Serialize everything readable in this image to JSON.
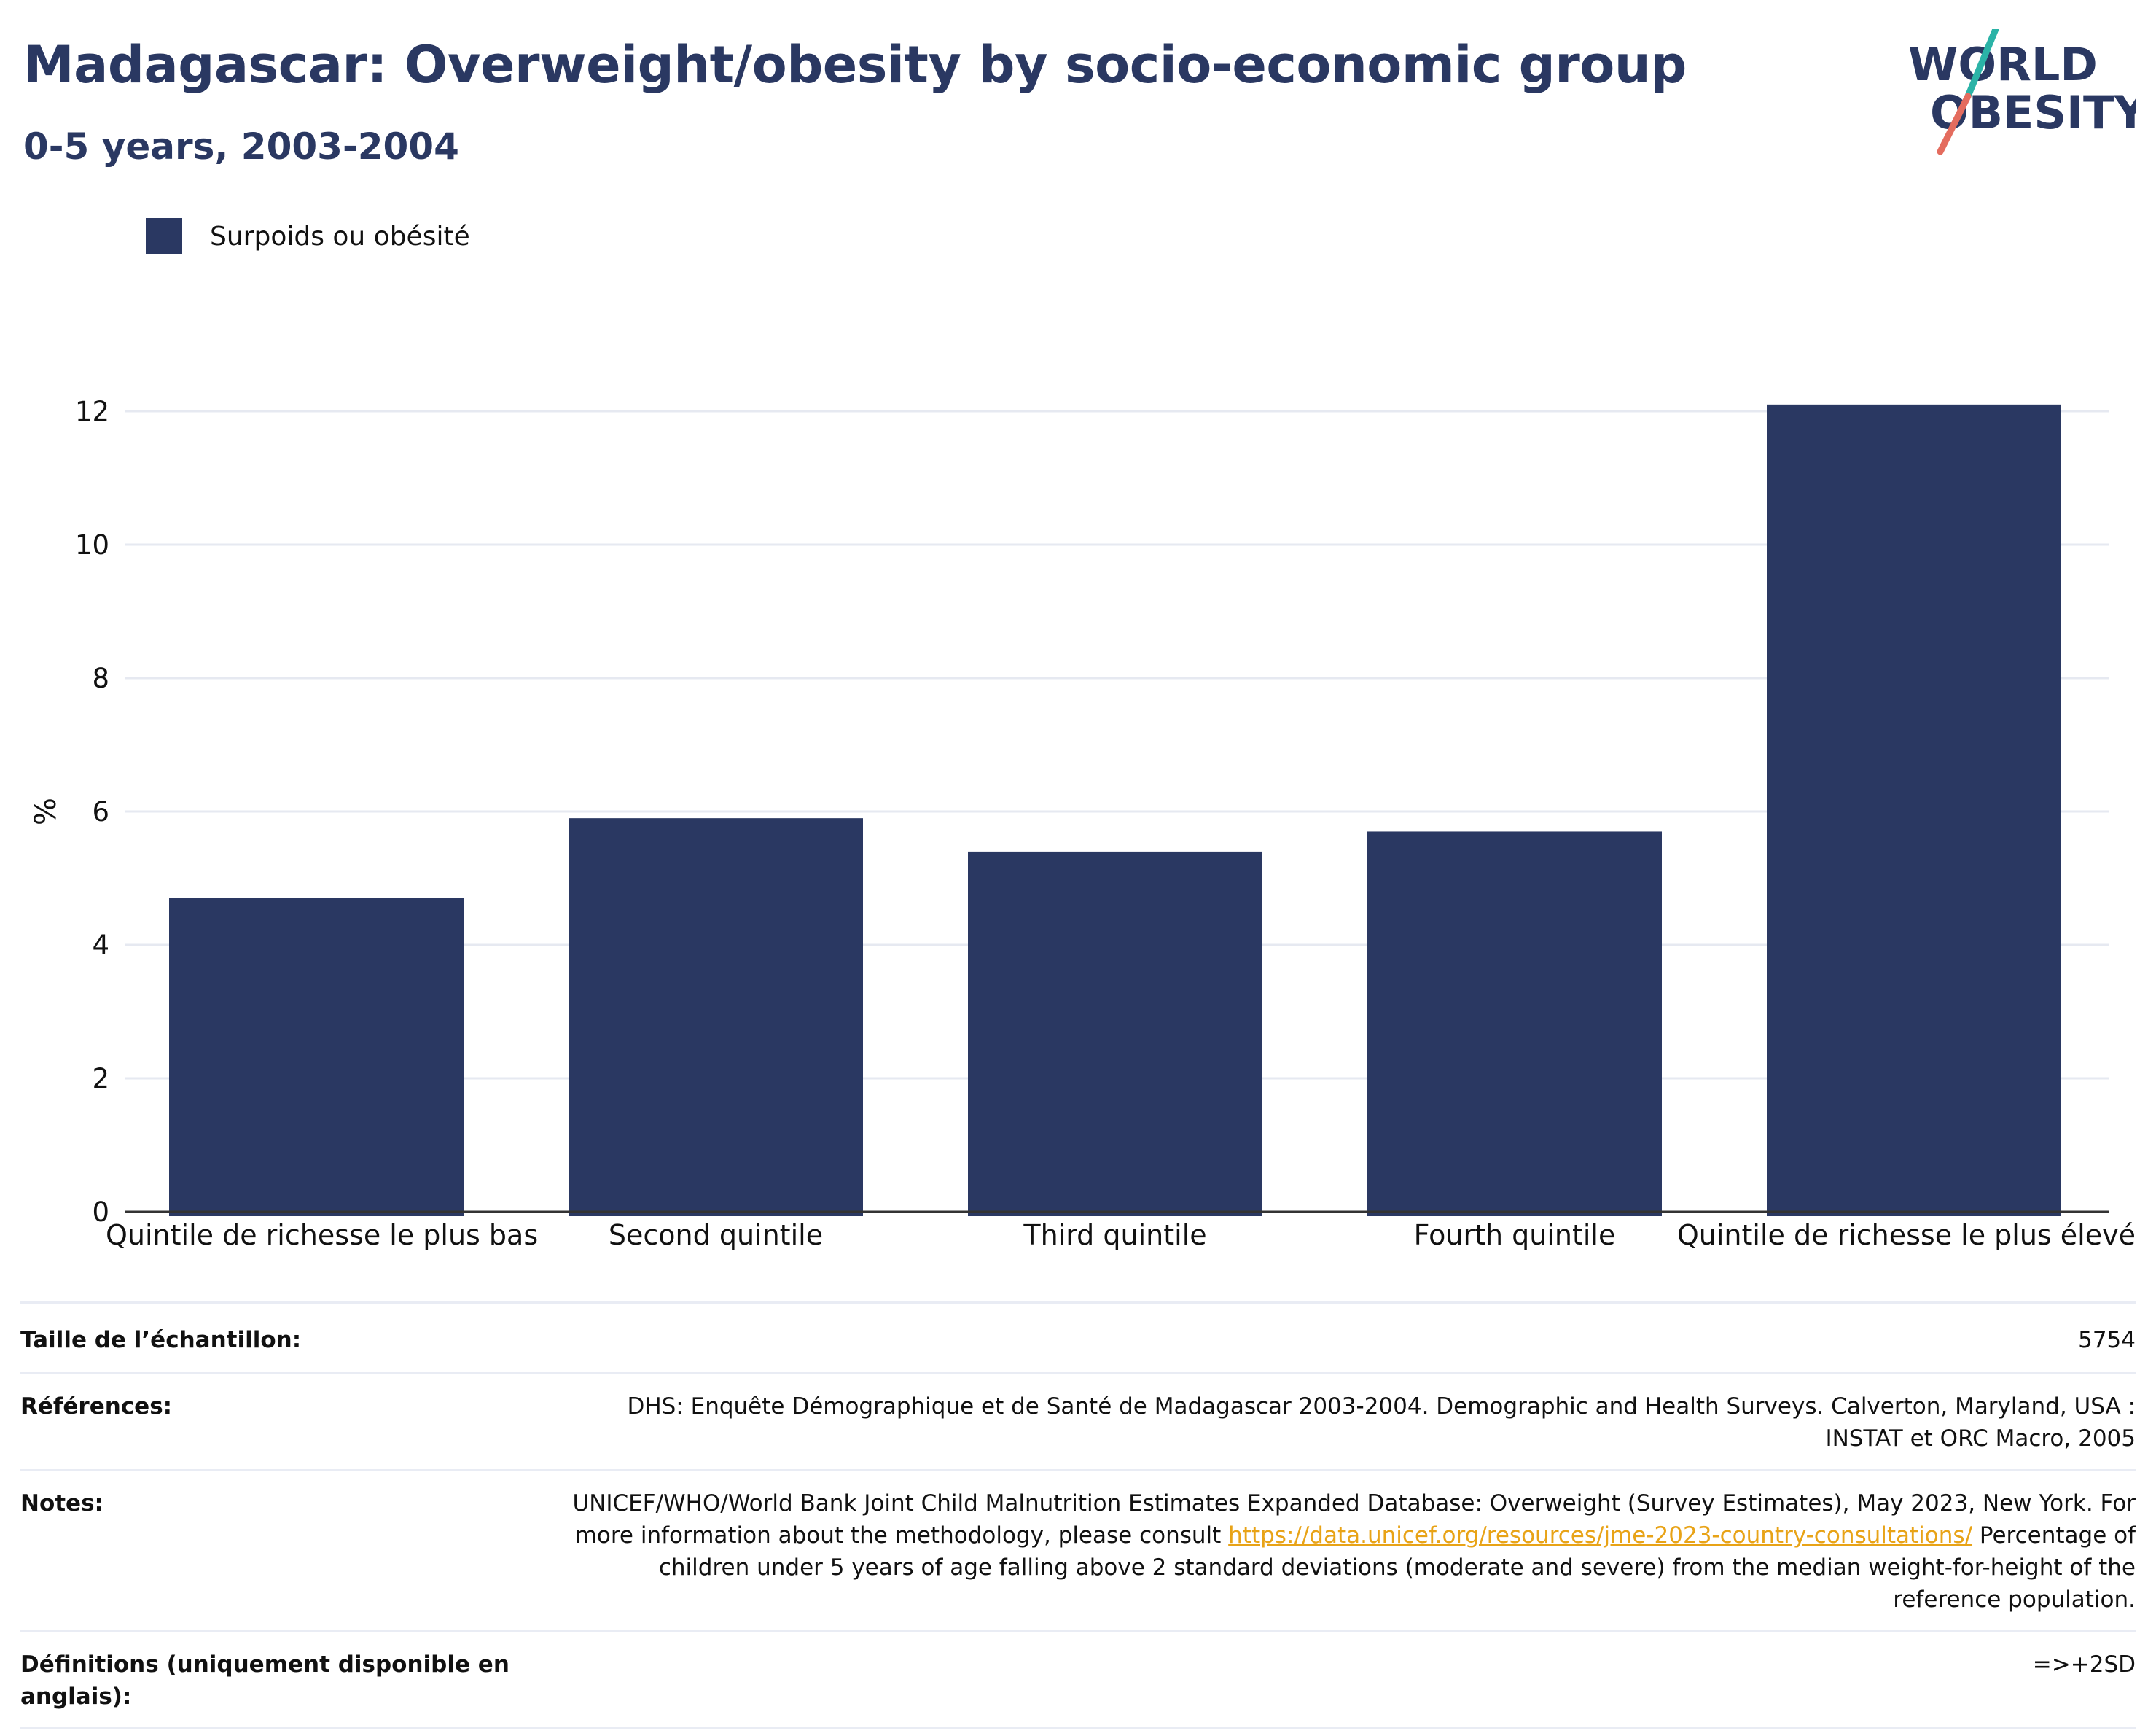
{
  "header": {
    "title": "Madagascar: Overweight/obesity by socio-economic group",
    "subtitle": "0-5 years, 2003-2004"
  },
  "logo": {
    "line1": "WORLD",
    "line2": "OBESITY",
    "colors": {
      "text": "#2a3862",
      "slash_top": "#2bb3a7",
      "slash_bottom": "#e46c5e"
    }
  },
  "legend": {
    "label": "Surpoids ou obésité",
    "color": "#2a3862"
  },
  "chart_data": {
    "type": "bar",
    "categories": [
      "Quintile de richesse le plus bas",
      "Second quintile",
      "Third quintile",
      "Fourth quintile",
      "Quintile de richesse le plus élevé"
    ],
    "series": [
      {
        "name": "Surpoids ou obésité",
        "values": [
          4.7,
          5.9,
          5.4,
          5.7,
          12.1
        ],
        "color": "#2a3862"
      }
    ],
    "ylabel": "%",
    "ylim": [
      0,
      12.4
    ],
    "yticks": [
      0,
      2,
      4,
      6,
      8,
      10,
      12
    ],
    "grid": true,
    "legend_position": "top-left"
  },
  "info": {
    "sample_size_label": "Taille de l’échantillon:",
    "sample_size_value": "5754",
    "references_label": "Références:",
    "references_value": "DHS: Enquête Démographique et de Santé de Madagascar 2003-2004. Demographic and Health Surveys. Calverton, Maryland, USA : INSTAT et ORC Macro, 2005",
    "notes_label": "Notes:",
    "notes_text_before": "UNICEF/WHO/World Bank Joint Child Malnutrition Estimates Expanded Database: Overweight (Survey Estimates), May 2023, New York. For more information about the methodology, please consult ",
    "notes_link": "https://data.unicef.org/resources/jme-2023-country-consultations/",
    "notes_text_after": " Percentage of children under 5 years of age falling above 2 standard deviations (moderate and severe) from the median weight-for-height of the reference population.",
    "definitions_label": "Définitions (uniquement disponible en anglais):",
    "definitions_value": "=>+2SD"
  }
}
